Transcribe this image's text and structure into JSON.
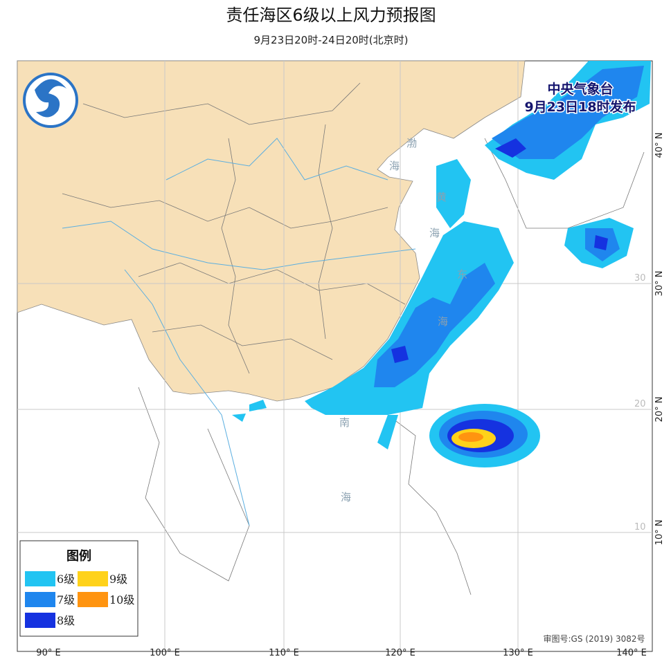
{
  "header": {
    "title": "责任海区6级以上风力预报图",
    "subtitle": "9月23日20时-24日20时(北京时)"
  },
  "issuer": {
    "name": "中央气象台",
    "time": "9月23日18时发布"
  },
  "legend": {
    "title": "图例",
    "items": [
      {
        "label": "6级",
        "color": "#22c4f2"
      },
      {
        "label": "7级",
        "color": "#1f86ee"
      },
      {
        "label": "8级",
        "color": "#1532e0"
      },
      {
        "label": "9级",
        "color": "#ffd21a"
      },
      {
        "label": "10级",
        "color": "#ff9410"
      }
    ]
  },
  "longitude_labels": [
    "90° E",
    "100° E",
    "110° E",
    "120° E",
    "130° E",
    "140° E"
  ],
  "latitude_labels": [
    "40° N",
    "30° N",
    "20° N",
    "10° N"
  ],
  "inner_latitude_labels": [
    "30",
    "20",
    "10"
  ],
  "sea_labels": [
    "渤",
    "海",
    "黄",
    "海",
    "东",
    "海",
    "南",
    "海"
  ],
  "approval": "审图号:GS (2019) 3082号"
}
